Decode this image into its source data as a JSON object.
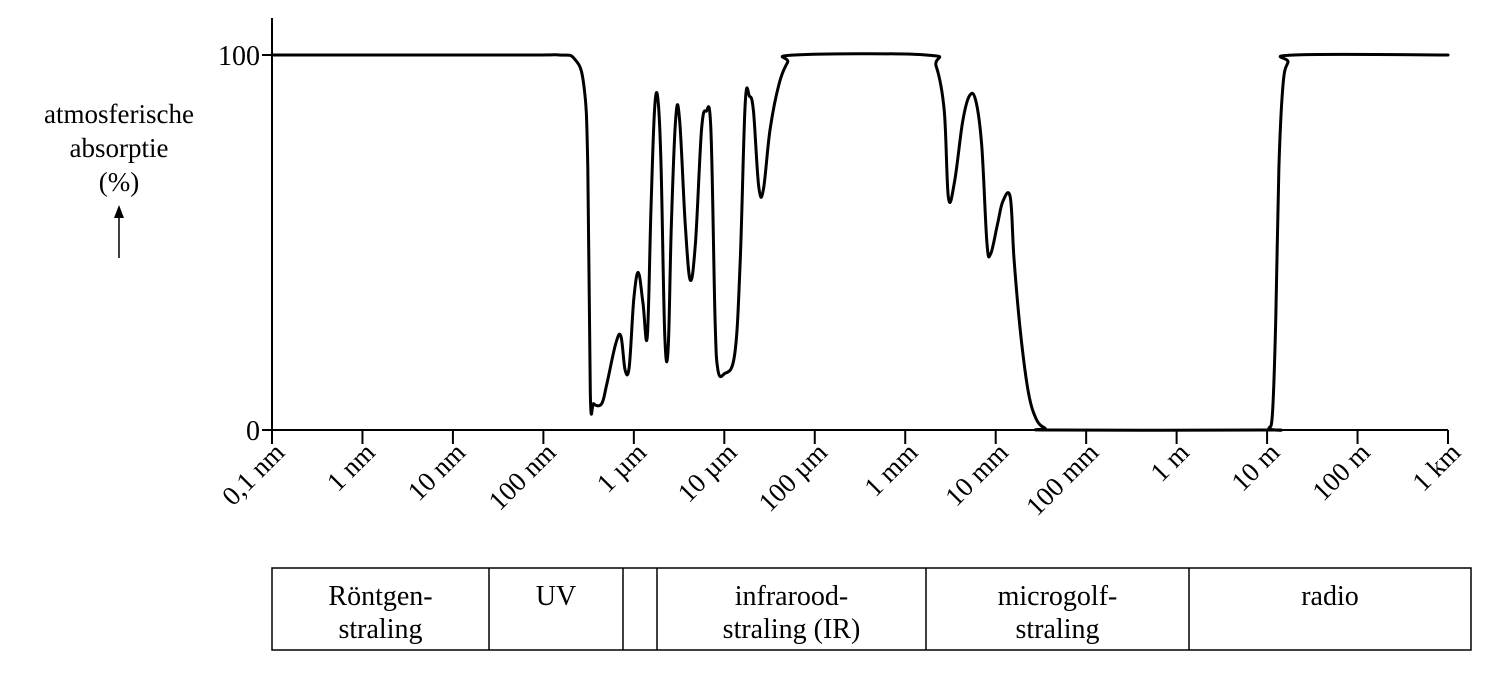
{
  "chart_data": {
    "type": "line",
    "title": "",
    "ylabel": {
      "lines": [
        "atmosferische",
        "absorptie",
        "(%)"
      ],
      "arrow": "↑"
    },
    "ylim": [
      0,
      100
    ],
    "yticks": [
      "0",
      "100"
    ],
    "x_scale": "log10",
    "x_unit": "m",
    "xlim_m": [
      1e-10,
      1000
    ],
    "xticks": [
      {
        "label": "0,1 nm",
        "value_m": 1e-10
      },
      {
        "label": "1 nm",
        "value_m": 1e-09
      },
      {
        "label": "10 nm",
        "value_m": 1e-08
      },
      {
        "label": "100 nm",
        "value_m": 1e-07
      },
      {
        "label": "1 µm",
        "value_m": 1e-06
      },
      {
        "label": "10 µm",
        "value_m": 1e-05
      },
      {
        "label": "100 µm",
        "value_m": 0.0001
      },
      {
        "label": "1 mm",
        "value_m": 0.001
      },
      {
        "label": "10 mm",
        "value_m": 0.01
      },
      {
        "label": "100 mm",
        "value_m": 0.1
      },
      {
        "label": "1 m",
        "value_m": 1
      },
      {
        "label": "10 m",
        "value_m": 10
      },
      {
        "label": "100 m",
        "value_m": 100
      },
      {
        "label": "1 km",
        "value_m": 1000
      }
    ],
    "series": [
      {
        "name": "",
        "color": "#000000",
        "points": [
          [
            1e-10,
            100
          ],
          [
            5e-08,
            100
          ],
          [
            1.5e-07,
            100
          ],
          [
            2.2e-07,
            99
          ],
          [
            2.8e-07,
            92
          ],
          [
            3.1e-07,
            70
          ],
          [
            3.3e-07,
            10
          ],
          [
            3.6e-07,
            7
          ],
          [
            4.4e-07,
            7
          ],
          [
            5e-07,
            12
          ],
          [
            6.3e-07,
            23
          ],
          [
            7.2e-07,
            25
          ],
          [
            8e-07,
            16
          ],
          [
            8.9e-07,
            17
          ],
          [
            1e-06,
            35
          ],
          [
            1.12e-06,
            42
          ],
          [
            1.26e-06,
            34
          ],
          [
            1.41e-06,
            25
          ],
          [
            1.55e-06,
            60
          ],
          [
            1.7e-06,
            86
          ],
          [
            1.85e-06,
            88
          ],
          [
            2e-06,
            70
          ],
          [
            2.2e-06,
            25
          ],
          [
            2.4e-06,
            22
          ],
          [
            2.6e-06,
            55
          ],
          [
            2.9e-06,
            83
          ],
          [
            3.2e-06,
            83
          ],
          [
            3.7e-06,
            55
          ],
          [
            4.2e-06,
            40
          ],
          [
            4.8e-06,
            50
          ],
          [
            5.6e-06,
            80
          ],
          [
            6.3e-06,
            85
          ],
          [
            7.1e-06,
            80
          ],
          [
            7.9e-06,
            30
          ],
          [
            8.5e-06,
            16
          ],
          [
            1e-05,
            15
          ],
          [
            1.3e-05,
            20
          ],
          [
            1.5e-05,
            45
          ],
          [
            1.7e-05,
            87
          ],
          [
            1.9e-05,
            89
          ],
          [
            2.1e-05,
            85
          ],
          [
            2.4e-05,
            65
          ],
          [
            2.7e-05,
            64
          ],
          [
            3.2e-05,
            80
          ],
          [
            4e-05,
            92
          ],
          [
            5e-05,
            98
          ],
          [
            6e-05,
            100
          ],
          [
            0.0017,
            100
          ],
          [
            0.0022,
            97
          ],
          [
            0.0027,
            85
          ],
          [
            0.003,
            62
          ],
          [
            0.0035,
            66
          ],
          [
            0.0043,
            82
          ],
          [
            0.0051,
            89
          ],
          [
            0.006,
            88
          ],
          [
            0.007,
            76
          ],
          [
            0.008,
            50
          ],
          [
            0.0088,
            47
          ],
          [
            0.0105,
            55
          ],
          [
            0.012,
            61
          ],
          [
            0.0145,
            62
          ],
          [
            0.016,
            45
          ],
          [
            0.019,
            25
          ],
          [
            0.023,
            10
          ],
          [
            0.028,
            3
          ],
          [
            0.035,
            0.5
          ],
          [
            0.045,
            0
          ],
          [
            9,
            0
          ],
          [
            10.5,
            0.5
          ],
          [
            11.5,
            5
          ],
          [
            12.5,
            30
          ],
          [
            13.5,
            70
          ],
          [
            15,
            92
          ],
          [
            17,
            98
          ],
          [
            20,
            100
          ],
          [
            1000,
            100
          ]
        ]
      }
    ],
    "bands": [
      {
        "label_lines": [
          "Röntgen-",
          "straling"
        ]
      },
      {
        "label_lines": [
          "UV"
        ]
      },
      {
        "label_lines": []
      },
      {
        "label_lines": [
          "infrarood-",
          "straling (IR)"
        ]
      },
      {
        "label_lines": [
          "microgolf-",
          "straling"
        ]
      },
      {
        "label_lines": [
          "radio"
        ]
      }
    ],
    "grid": false,
    "legend": "none"
  }
}
